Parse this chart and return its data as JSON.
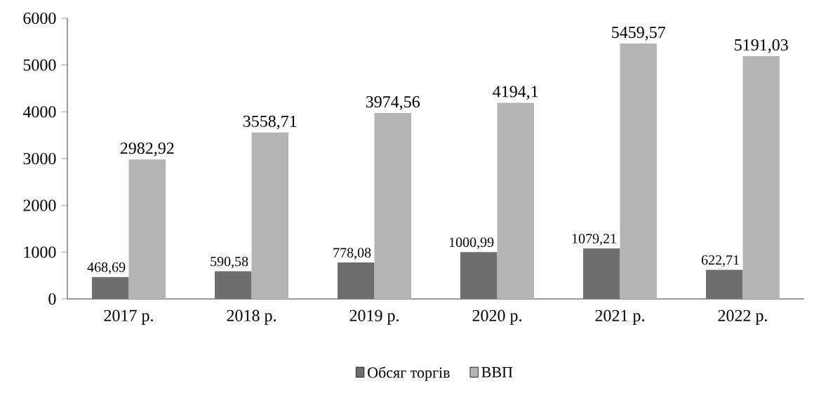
{
  "chart_data": {
    "type": "bar",
    "categories": [
      "2017 р.",
      "2018 р.",
      "2019 р.",
      "2020 р.",
      "2021 р.",
      "2022 р."
    ],
    "series": [
      {
        "name": "Обсяг торгів",
        "color": "#6e6e6e",
        "values": [
          468.69,
          590.58,
          778.08,
          1000.99,
          1079.21,
          622.71
        ],
        "value_labels": [
          "468,69",
          "590,58",
          "778,08",
          "1000,99",
          "1079,21",
          "622,71"
        ]
      },
      {
        "name": "ВВП",
        "color": "#b4b4b4",
        "values": [
          2982.92,
          3558.71,
          3974.56,
          4194.1,
          5459.57,
          5191.03
        ],
        "value_labels": [
          "2982,92",
          "3558,71",
          "3974,56",
          "4194,1",
          "5459,57",
          "5191,03"
        ]
      }
    ],
    "ylim": [
      0,
      6000
    ],
    "yticks": [
      0,
      1000,
      2000,
      3000,
      4000,
      5000,
      6000
    ],
    "grid": false,
    "legend": "bottom"
  }
}
